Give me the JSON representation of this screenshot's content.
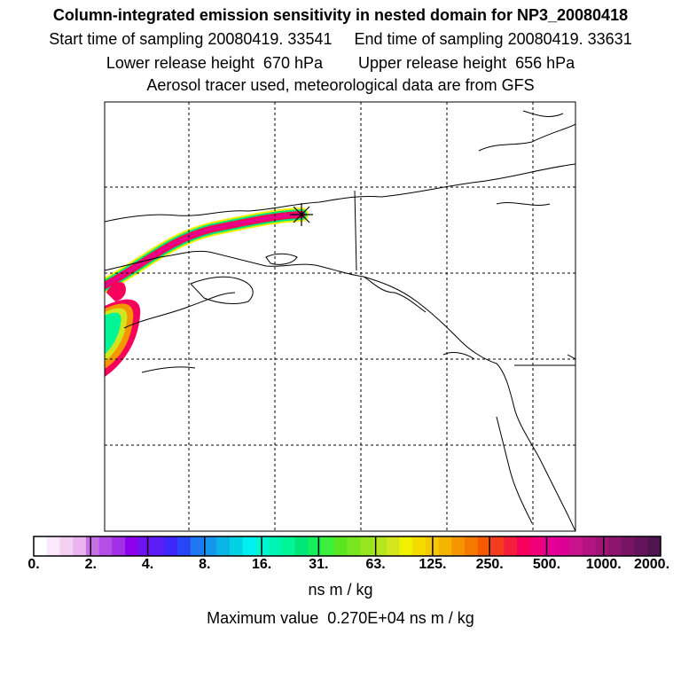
{
  "header": {
    "title": "Column-integrated emission sensitivity in nested domain for NP3_20080418",
    "line_times": "Start time of sampling 20080419. 33541     End time of sampling 20080419. 33631",
    "line_heights": "Lower release height  670 hPa        Upper release height  656 hPa",
    "line_tracer": "Aerosol tracer used, meteorological data are from GFS"
  },
  "colorbar": {
    "colors": [
      "#ffffff",
      "#fbe8fb",
      "#f4d0f4",
      "#eab5ee",
      "#c86fe6",
      "#b34ee6",
      "#a32ee8",
      "#8c00ec",
      "#6e14f2",
      "#5a1ef7",
      "#3c28fa",
      "#2846f7",
      "#1e78f2",
      "#1496ec",
      "#0ab4e6",
      "#00d2e2",
      "#00f0f0",
      "#00f5d2",
      "#00f5b4",
      "#00f596",
      "#00e678",
      "#14f05a",
      "#3cf03c",
      "#5ae61e",
      "#78e61e",
      "#96e61e",
      "#b4e61e",
      "#d2e61e",
      "#f0f000",
      "#f5dc00",
      "#f5c800",
      "#f5b400",
      "#f59600",
      "#f57800",
      "#f55a00",
      "#f53c1e",
      "#f51e3c",
      "#f5005a",
      "#f00078",
      "#e60096",
      "#dc0096",
      "#c8148c",
      "#b41482",
      "#a01478",
      "#8c146e",
      "#781464",
      "#64145a",
      "#50144e"
    ],
    "ticks": [
      "0.",
      "2.",
      "4.",
      "8.",
      "16.",
      "31.",
      "63.",
      "125.",
      "250.",
      "500.",
      "1000.",
      "2000."
    ],
    "units": "ns m / kg",
    "max_value": "Maximum value  0.270E+04 ns m / kg"
  },
  "map": {
    "region": "Alaska and northwestern North America",
    "release_marker": "release-site-star"
  }
}
